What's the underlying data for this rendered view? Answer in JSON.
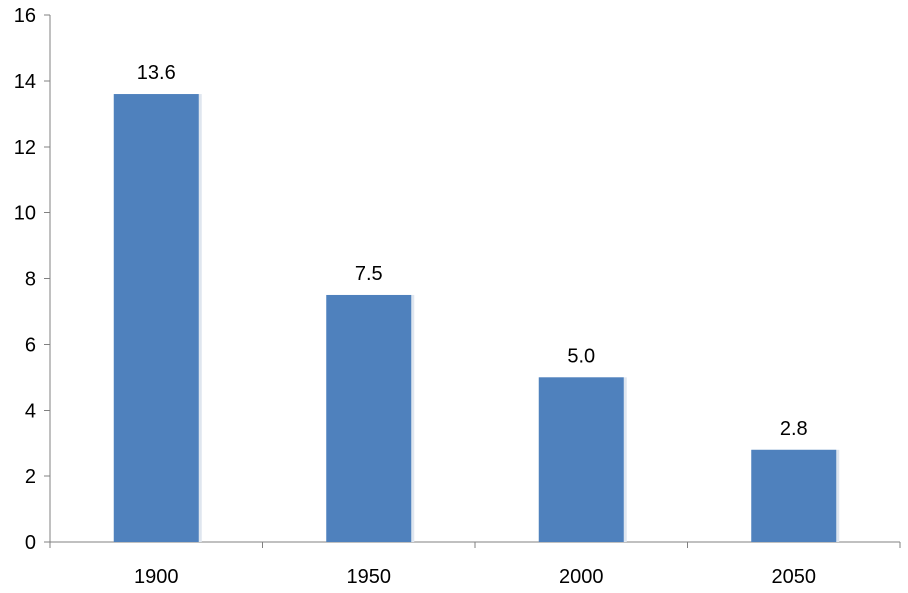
{
  "chart_data": {
    "type": "bar",
    "categories": [
      "1900",
      "1950",
      "2000",
      "2050"
    ],
    "values": [
      13.6,
      7.5,
      5.0,
      2.8
    ],
    "data_labels": [
      "13.6",
      "7.5",
      "5.0",
      "2.8"
    ],
    "title": "",
    "xlabel": "",
    "ylabel": "",
    "ylim": [
      0,
      16
    ],
    "y_ticks": [
      0,
      2,
      4,
      6,
      8,
      10,
      12,
      14,
      16
    ],
    "y_tick_labels": [
      "0",
      "2",
      "4",
      "6",
      "8",
      "10",
      "12",
      "14",
      "16"
    ],
    "grid": false,
    "legend": "none",
    "bar_color": "#4f81bd"
  }
}
